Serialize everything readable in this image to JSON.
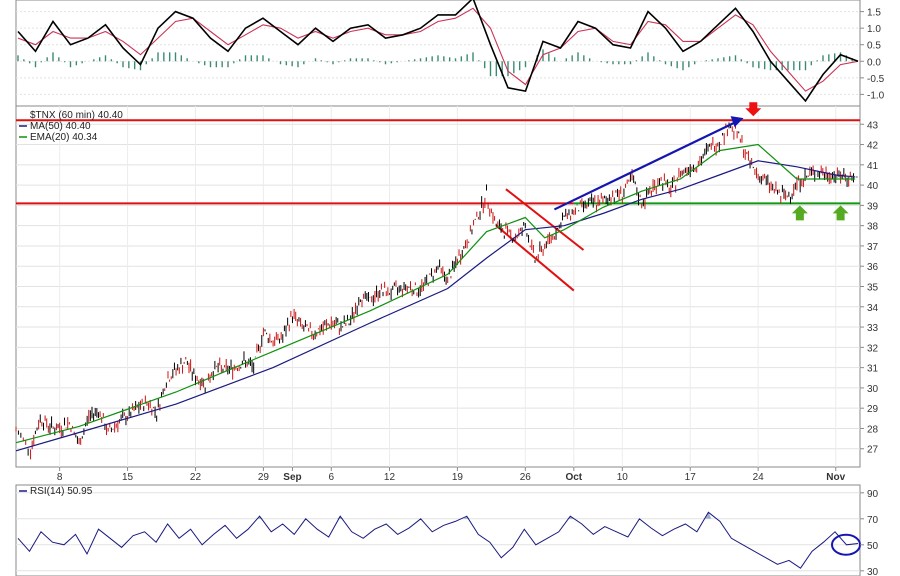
{
  "chart_data": [
    {
      "type": "line",
      "panel": "macd",
      "title": "",
      "ylim": [
        -1.35,
        1.85
      ],
      "yticks": [
        "1.5",
        "1.0",
        "0.5",
        "0.0",
        "-0.5",
        "-1.0"
      ],
      "ytick_values": [
        1.5,
        1.0,
        0.5,
        0.0,
        -0.5,
        -1.0
      ],
      "series": [
        {
          "name": "",
          "color": "#000000",
          "values": [
            0.9,
            0.3,
            1.2,
            0.5,
            0.7,
            1.1,
            0.4,
            -0.1,
            1.0,
            1.5,
            1.3,
            0.7,
            0.3,
            1.0,
            1.3,
            0.9,
            0.5,
            1.0,
            0.6,
            1.0,
            1.1,
            0.7,
            0.8,
            1.0,
            1.4,
            1.4,
            1.9,
            0.5,
            -0.8,
            -0.9,
            0.6,
            0.4,
            1.2,
            1.0,
            0.5,
            0.4,
            1.5,
            1.0,
            0.3,
            0.6,
            1.1,
            1.6,
            0.9,
            0.0,
            -0.6,
            -1.2,
            -0.4,
            0.2,
            0.0
          ]
        },
        {
          "name": "",
          "color": "#cc3355",
          "values": [
            0.7,
            0.5,
            0.9,
            0.7,
            0.7,
            0.9,
            0.6,
            0.2,
            0.7,
            1.2,
            1.3,
            0.9,
            0.5,
            0.8,
            1.1,
            1.0,
            0.7,
            0.9,
            0.7,
            0.9,
            1.0,
            0.8,
            0.8,
            0.9,
            1.2,
            1.3,
            1.6,
            1.0,
            -0.3,
            -0.7,
            0.2,
            0.4,
            0.9,
            1.0,
            0.6,
            0.5,
            1.2,
            1.1,
            0.6,
            0.6,
            1.0,
            1.4,
            1.1,
            0.3,
            -0.3,
            -0.9,
            -0.6,
            -0.1,
            0.0
          ]
        }
      ],
      "histogram_color": "#3b8a74"
    },
    {
      "type": "line",
      "panel": "price",
      "title": "$TNX (60 min) 40.40",
      "xlabel": "",
      "ylabel": "",
      "ylim": [
        26.1,
        43.9
      ],
      "yticks": [
        "43",
        "42",
        "41",
        "40",
        "39",
        "38",
        "37",
        "36",
        "35",
        "34",
        "33",
        "32",
        "31",
        "30",
        "29",
        "28",
        "27"
      ],
      "ytick_values": [
        43,
        42,
        41,
        40,
        39,
        38,
        37,
        36,
        35,
        34,
        33,
        32,
        31,
        30,
        29,
        28,
        27
      ],
      "xtick_labels": [
        "8",
        "15",
        "22",
        "29",
        "Sep",
        "6",
        "12",
        "19",
        "26",
        "Oct",
        "10",
        "17",
        "24",
        "Nov"
      ],
      "xtick_values": [
        8,
        15,
        22,
        29,
        32,
        36,
        42,
        49,
        56,
        61,
        66,
        73,
        80,
        88
      ],
      "xtick_bold": [
        "Sep",
        "Oct",
        "Nov"
      ],
      "xlim": [
        3.5,
        90.5
      ],
      "series": [
        {
          "name": "$TNX",
          "color": "#000000",
          "x": [
            3.5,
            5,
            6,
            7,
            8,
            9,
            10,
            11,
            12,
            13,
            14,
            15,
            16,
            17,
            18,
            19,
            20,
            21,
            22,
            23,
            24,
            25,
            26,
            27,
            28,
            29,
            30,
            31,
            32,
            33,
            34,
            35,
            36,
            37,
            38,
            39,
            40,
            41,
            42,
            43,
            44,
            45,
            46,
            47,
            48,
            49,
            50,
            51,
            52,
            53,
            54,
            55,
            56,
            57,
            58,
            59,
            60,
            61,
            62,
            63,
            64,
            65,
            66,
            67,
            68,
            69,
            70,
            71,
            72,
            73,
            74,
            75,
            76,
            77,
            78,
            79,
            80,
            81,
            82,
            83,
            84,
            85,
            86,
            87,
            88,
            89,
            90
          ],
          "y": [
            27.9,
            27.0,
            28.5,
            28.1,
            28.0,
            28.3,
            27.2,
            28.6,
            28.9,
            27.8,
            28.3,
            28.6,
            29.0,
            29.3,
            28.8,
            30.4,
            30.9,
            31.3,
            30.5,
            30.2,
            31.0,
            30.9,
            31.0,
            31.3,
            31.0,
            32.8,
            32.3,
            32.5,
            33.6,
            33.0,
            32.7,
            32.9,
            33.2,
            33.0,
            33.3,
            34.5,
            34.3,
            34.8,
            34.7,
            34.9,
            35.0,
            34.8,
            35.3,
            36.0,
            35.3,
            36.3,
            37.2,
            38.4,
            39.5,
            38.0,
            37.7,
            37.4,
            38.0,
            36.3,
            37.0,
            37.6,
            38.4,
            38.7,
            39.0,
            39.1,
            39.2,
            39.5,
            39.6,
            40.3,
            39.1,
            39.8,
            40.3,
            39.7,
            40.6,
            40.9,
            41.1,
            41.9,
            42.1,
            43.0,
            42.4,
            41.2,
            40.5,
            40.1,
            39.6,
            39.4,
            40.1,
            40.4,
            40.7,
            40.5,
            40.5,
            40.4,
            40.4
          ]
        },
        {
          "name": "MA(50) 40.40",
          "color": "#1a1a80",
          "x": [
            3.5,
            10,
            20,
            30,
            40,
            48,
            52,
            56,
            60,
            64,
            68,
            72,
            76,
            80,
            84,
            88,
            90
          ],
          "y": [
            26.9,
            27.8,
            29.2,
            31.0,
            33.2,
            34.9,
            36.4,
            37.8,
            38.0,
            38.6,
            39.3,
            39.8,
            40.5,
            41.2,
            40.9,
            40.5,
            40.4
          ]
        },
        {
          "name": "EMA(20) 40.34",
          "color": "#109010",
          "x": [
            3.5,
            10,
            20,
            30,
            40,
            48,
            52,
            56,
            58,
            60,
            64,
            68,
            72,
            76,
            80,
            84,
            88,
            90
          ],
          "y": [
            27.3,
            28.1,
            29.8,
            31.8,
            33.8,
            35.6,
            37.7,
            38.4,
            37.4,
            37.8,
            38.9,
            39.7,
            40.3,
            41.7,
            42.0,
            40.3,
            40.3,
            40.3
          ]
        }
      ],
      "annotations": {
        "resistance_line": 43.2,
        "support_line": 39.1,
        "support_line_green_from_x": 61,
        "channel_upper": [
          [
            54,
            39.8
          ],
          [
            62,
            36.8
          ]
        ],
        "channel_lower": [
          [
            53,
            38.0
          ],
          [
            61,
            34.8
          ]
        ],
        "trend_arrow": [
          [
            59,
            38.8
          ],
          [
            78.5,
            43.3
          ]
        ],
        "down_marker_x": 79.5,
        "up_marker_x": [
          84.3,
          88.5
        ]
      }
    },
    {
      "type": "line",
      "panel": "rsi",
      "title": "RSI(14) 50.95",
      "ylim": [
        26,
        96
      ],
      "yticks": [
        "90",
        "70",
        "50",
        "30"
      ],
      "ytick_values": [
        90,
        70,
        50,
        30
      ],
      "series": [
        {
          "name": "RSI(14) 50.95",
          "color": "#1a1a80",
          "values": [
            55,
            45,
            60,
            52,
            50,
            58,
            43,
            62,
            55,
            48,
            57,
            60,
            52,
            66,
            55,
            62,
            50,
            58,
            65,
            55,
            62,
            72,
            60,
            66,
            58,
            70,
            62,
            56,
            72,
            60,
            55,
            62,
            66,
            58,
            63,
            70,
            60,
            65,
            68,
            72,
            58,
            52,
            40,
            48,
            62,
            50,
            55,
            60,
            72,
            66,
            58,
            64,
            60,
            56,
            70,
            63,
            57,
            62,
            66,
            60,
            75,
            68,
            55,
            50,
            45,
            40,
            35,
            38,
            32,
            45,
            52,
            60,
            50,
            51
          ]
        }
      ],
      "highlight_circle_at": 50
    }
  ]
}
